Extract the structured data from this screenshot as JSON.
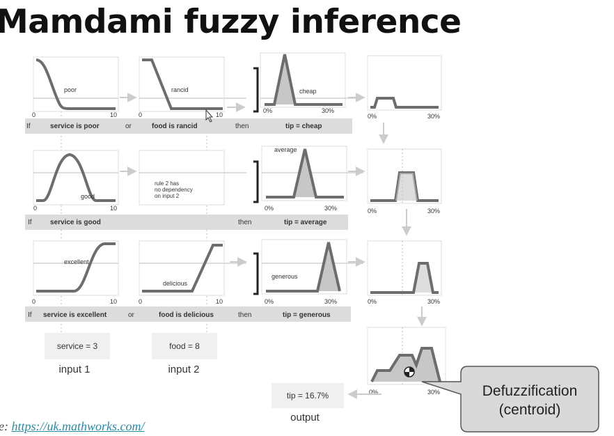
{
  "title": "Mamdami fuzzy inference",
  "source": {
    "prefix": "e:",
    "link": "https://uk.mathworks.com/"
  },
  "rules": [
    {
      "if": "If",
      "input1_clause": "service is poor",
      "connector": "or",
      "input2_clause": "food is rancid",
      "then": "then",
      "output_clause": "tip = cheap",
      "mf1_label": "poor",
      "mf2_label": "rancid",
      "out_label": "cheap"
    },
    {
      "if": "If",
      "input1_clause": "service is good",
      "connector": "",
      "input2_clause": "",
      "then": "then",
      "output_clause": "tip = average",
      "mf1_label": "good",
      "mf2_note": [
        "rule 2 has",
        "no dependency",
        "on input 2"
      ],
      "out_label": "average"
    },
    {
      "if": "If",
      "input1_clause": "service is excellent",
      "connector": "or",
      "input2_clause": "food is delicious",
      "then": "then",
      "output_clause": "tip = generous",
      "mf1_label": "excellent",
      "mf2_label": "delicious",
      "out_label": "generous"
    }
  ],
  "axis": {
    "input_min": "0",
    "input_max": "10",
    "output_min": "0%",
    "output_max": "30%"
  },
  "inputs": [
    {
      "value": "service = 3",
      "caption": "input 1"
    },
    {
      "value": "food = 8",
      "caption": "input 2"
    }
  ],
  "output": {
    "value": "tip = 16.7%",
    "caption": "output"
  },
  "callout": {
    "line1": "Defuzzification",
    "line2": "(centroid)"
  }
}
